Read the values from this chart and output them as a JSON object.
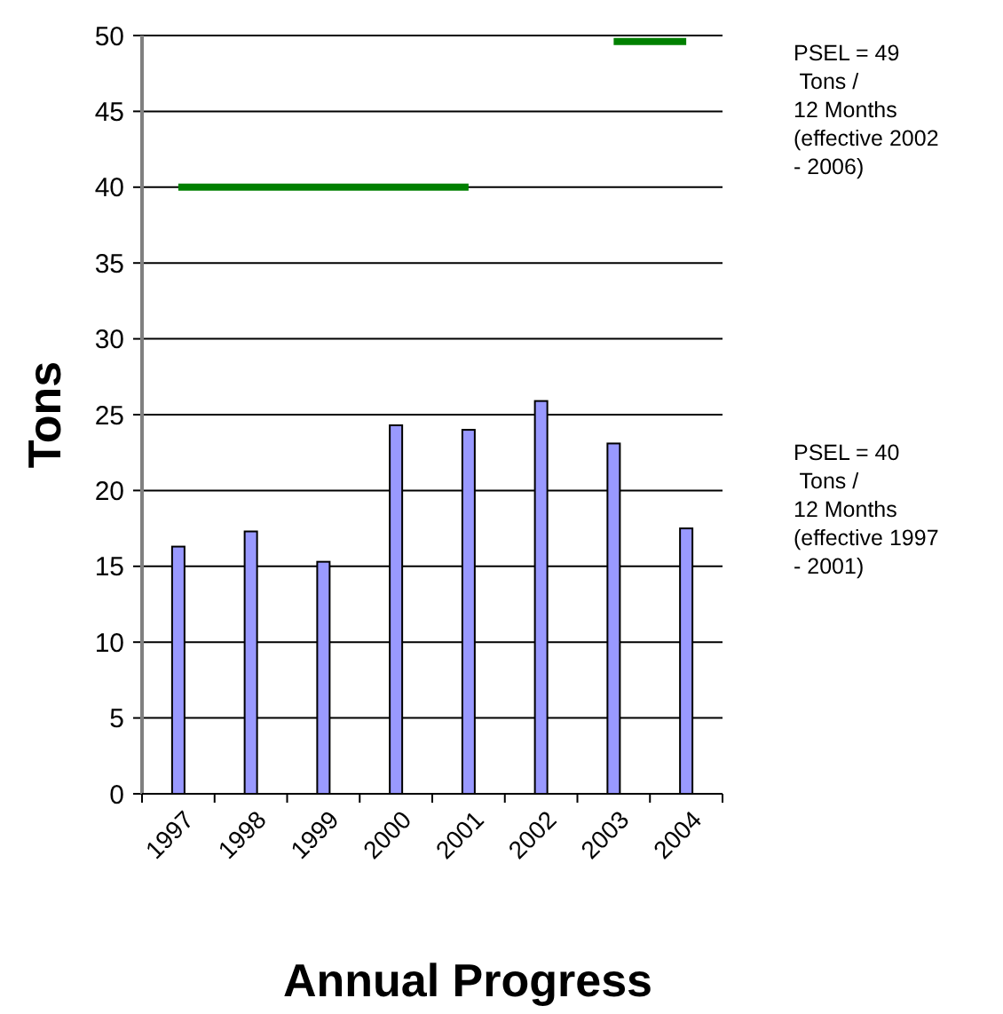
{
  "chart_data": {
    "type": "bar",
    "xlabel": "Annual Progress",
    "ylabel": "Tons",
    "categories": [
      "1997",
      "1998",
      "1999",
      "2000",
      "2001",
      "2002",
      "2003",
      "2004"
    ],
    "series": [
      {
        "color": "#9999ff",
        "values": [
          16.3,
          17.3,
          15.3,
          24.3,
          24,
          25.9,
          23.1,
          17.5
        ]
      },
      {
        "type": "line",
        "color": "#008000",
        "values": [
          40,
          40,
          40,
          40,
          40,
          null,
          null,
          null
        ]
      },
      {
        "type": "line",
        "color": "#008000",
        "values": [
          null,
          null,
          null,
          null,
          null,
          null,
          49.6,
          49.6
        ]
      }
    ],
    "ylim": [
      0,
      50
    ],
    "yticks": [
      0,
      5,
      10,
      15,
      20,
      25,
      30,
      35,
      40,
      45,
      50
    ],
    "grid": "y",
    "annotations": [
      "PSEL = 49\n Tons /\n12 Months\n(effective 2002\n- 2006)",
      "PSEL = 40\n Tons /\n12 Months\n(effective 1997\n- 2001)"
    ]
  }
}
